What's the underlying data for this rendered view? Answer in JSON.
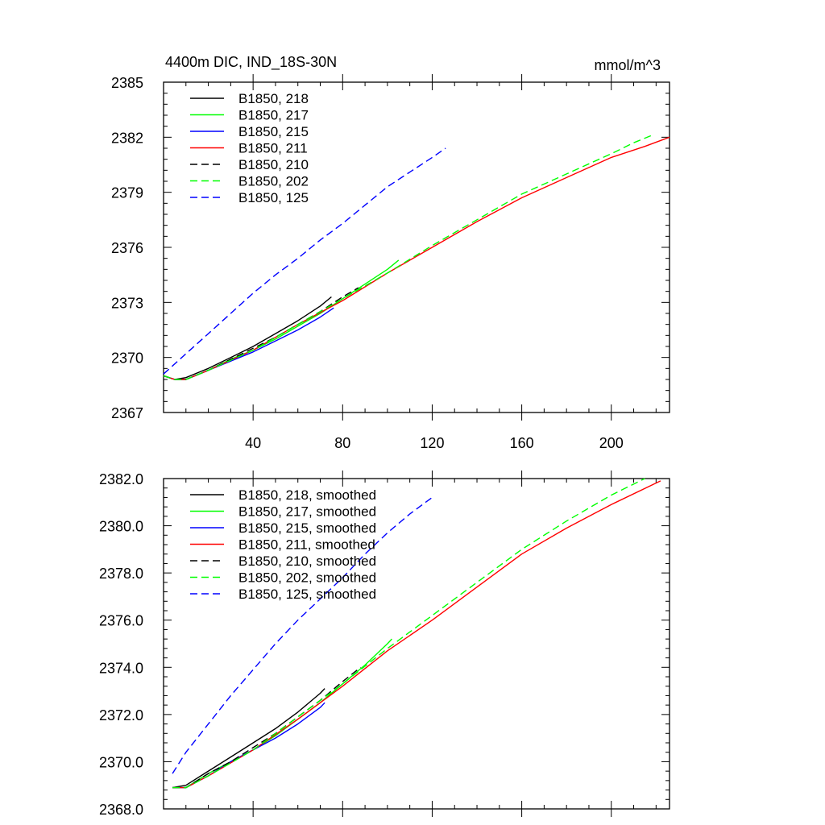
{
  "header": {
    "title": "4400m DIC, IND_18S-30N",
    "units": "mmol/m^3"
  },
  "chart_data": [
    {
      "type": "line",
      "panel": "top",
      "title": "4400m DIC, IND_18S-30N",
      "units_label": "mmol/m^3",
      "xlabel": "",
      "ylabel": "",
      "xlim": [
        0,
        226
      ],
      "ylim": [
        2367,
        2385
      ],
      "xticks": [
        40,
        80,
        120,
        160,
        200
      ],
      "xtick_labels": [
        "40",
        "80",
        "120",
        "160",
        "200"
      ],
      "yticks": [
        2367,
        2370,
        2373,
        2376,
        2379,
        2382,
        2385
      ],
      "ytick_labels": [
        "2367",
        "2370",
        "2373",
        "2376",
        "2379",
        "2382",
        "2385"
      ],
      "legend_position": "top-left",
      "series": [
        {
          "name": "B1850, 218",
          "color": "#000000",
          "dash": "solid",
          "x": [
            0,
            5,
            10,
            20,
            30,
            40,
            50,
            60,
            70,
            75
          ],
          "y": [
            2369.0,
            2368.8,
            2368.9,
            2369.4,
            2370.0,
            2370.6,
            2371.3,
            2372.0,
            2372.8,
            2373.3
          ]
        },
        {
          "name": "B1850, 217",
          "color": "#00ff00",
          "dash": "solid",
          "x": [
            0,
            5,
            10,
            20,
            30,
            40,
            50,
            60,
            70,
            80,
            90,
            100,
            105
          ],
          "y": [
            2369.0,
            2368.8,
            2368.8,
            2369.3,
            2369.9,
            2370.4,
            2371.0,
            2371.7,
            2372.4,
            2373.2,
            2374.0,
            2374.8,
            2375.3
          ]
        },
        {
          "name": "B1850, 215",
          "color": "#0000ff",
          "dash": "solid",
          "x": [
            0,
            5,
            10,
            20,
            30,
            40,
            50,
            60,
            70,
            76
          ],
          "y": [
            2369.0,
            2368.8,
            2368.8,
            2369.3,
            2369.8,
            2370.3,
            2370.9,
            2371.5,
            2372.2,
            2372.7
          ]
        },
        {
          "name": "B1850, 211",
          "color": "#ff0000",
          "dash": "solid",
          "x": [
            0,
            5,
            10,
            20,
            40,
            60,
            80,
            100,
            120,
            140,
            160,
            180,
            200,
            215,
            226
          ],
          "y": [
            2369.0,
            2368.8,
            2368.8,
            2369.3,
            2370.4,
            2371.8,
            2373.1,
            2374.6,
            2376.0,
            2377.4,
            2378.7,
            2379.8,
            2380.9,
            2381.5,
            2382.0
          ]
        },
        {
          "name": "B1850, 210",
          "color": "#000000",
          "dash": "dashed",
          "x": [
            0,
            5,
            10,
            20,
            30,
            40,
            50,
            60,
            70,
            80,
            87
          ],
          "y": [
            2369.0,
            2368.8,
            2368.8,
            2369.3,
            2369.9,
            2370.5,
            2371.1,
            2371.8,
            2372.5,
            2373.3,
            2373.8
          ]
        },
        {
          "name": "B1850, 202",
          "color": "#00ff00",
          "dash": "dashed",
          "x": [
            0,
            5,
            10,
            20,
            40,
            60,
            80,
            100,
            120,
            140,
            160,
            180,
            200,
            210,
            218
          ],
          "y": [
            2369.0,
            2368.8,
            2368.8,
            2369.3,
            2370.4,
            2371.8,
            2373.2,
            2374.6,
            2376.1,
            2377.5,
            2378.9,
            2380.0,
            2381.1,
            2381.7,
            2382.1
          ]
        },
        {
          "name": "B1850, 125",
          "color": "#0000ff",
          "dash": "dashed",
          "x": [
            0,
            10,
            20,
            30,
            40,
            50,
            60,
            70,
            80,
            90,
            100,
            110,
            120,
            126
          ],
          "y": [
            2369.1,
            2370.2,
            2371.3,
            2372.4,
            2373.5,
            2374.5,
            2375.4,
            2376.4,
            2377.3,
            2378.3,
            2379.3,
            2380.1,
            2380.9,
            2381.4
          ]
        }
      ]
    },
    {
      "type": "line",
      "panel": "bottom",
      "title": "",
      "xlabel": "",
      "ylabel": "",
      "xlim": [
        0,
        226
      ],
      "ylim": [
        2368.0,
        2382.0
      ],
      "xticks": [
        40,
        80,
        120,
        160,
        200
      ],
      "xtick_labels": [],
      "yticks": [
        2368.0,
        2370.0,
        2372.0,
        2374.0,
        2376.0,
        2378.0,
        2380.0,
        2382.0
      ],
      "ytick_labels": [
        "2368.0",
        "2370.0",
        "2372.0",
        "2374.0",
        "2376.0",
        "2378.0",
        "2380.0",
        "2382.0"
      ],
      "legend_position": "top-left",
      "series": [
        {
          "name": "B1850, 218, smoothed",
          "color": "#000000",
          "dash": "solid",
          "x": [
            4,
            10,
            20,
            30,
            40,
            50,
            60,
            70,
            72
          ],
          "y": [
            2368.9,
            2369.0,
            2369.6,
            2370.2,
            2370.8,
            2371.4,
            2372.1,
            2372.9,
            2373.1
          ]
        },
        {
          "name": "B1850, 217, smoothed",
          "color": "#00ff00",
          "dash": "solid",
          "x": [
            4,
            10,
            20,
            30,
            40,
            50,
            60,
            70,
            80,
            90,
            100,
            102
          ],
          "y": [
            2368.9,
            2368.9,
            2369.5,
            2370.0,
            2370.5,
            2371.1,
            2371.8,
            2372.5,
            2373.3,
            2374.1,
            2375.0,
            2375.2
          ]
        },
        {
          "name": "B1850, 215, smoothed",
          "color": "#0000ff",
          "dash": "solid",
          "x": [
            4,
            10,
            20,
            30,
            40,
            50,
            60,
            70,
            72
          ],
          "y": [
            2368.9,
            2368.9,
            2369.4,
            2370.0,
            2370.5,
            2371.0,
            2371.6,
            2372.3,
            2372.5
          ]
        },
        {
          "name": "B1850, 211, smoothed",
          "color": "#ff0000",
          "dash": "solid",
          "x": [
            4,
            10,
            20,
            40,
            60,
            80,
            100,
            120,
            140,
            160,
            180,
            200,
            222
          ],
          "y": [
            2368.9,
            2368.9,
            2369.4,
            2370.5,
            2371.8,
            2373.2,
            2374.7,
            2376.0,
            2377.4,
            2378.8,
            2379.9,
            2380.9,
            2381.9
          ]
        },
        {
          "name": "B1850, 210, smoothed",
          "color": "#000000",
          "dash": "dashed",
          "x": [
            4,
            10,
            20,
            30,
            40,
            50,
            60,
            70,
            80,
            88
          ],
          "y": [
            2368.9,
            2368.9,
            2369.5,
            2370.0,
            2370.6,
            2371.2,
            2371.9,
            2372.6,
            2373.4,
            2374.0
          ]
        },
        {
          "name": "B1850, 202, smoothed",
          "color": "#00ff00",
          "dash": "dashed",
          "x": [
            4,
            10,
            20,
            40,
            60,
            80,
            100,
            120,
            140,
            160,
            180,
            200,
            215
          ],
          "y": [
            2368.9,
            2368.9,
            2369.4,
            2370.5,
            2371.9,
            2373.3,
            2374.8,
            2376.2,
            2377.6,
            2379.0,
            2380.2,
            2381.3,
            2382.0
          ]
        },
        {
          "name": "B1850, 125, smoothed",
          "color": "#0000ff",
          "dash": "dashed",
          "x": [
            4,
            10,
            20,
            30,
            40,
            50,
            60,
            70,
            80,
            90,
            100,
            110,
            120
          ],
          "y": [
            2369.5,
            2370.4,
            2371.6,
            2372.8,
            2373.9,
            2375.0,
            2376.0,
            2376.9,
            2377.8,
            2378.8,
            2379.7,
            2380.5,
            2381.2
          ]
        }
      ]
    }
  ]
}
